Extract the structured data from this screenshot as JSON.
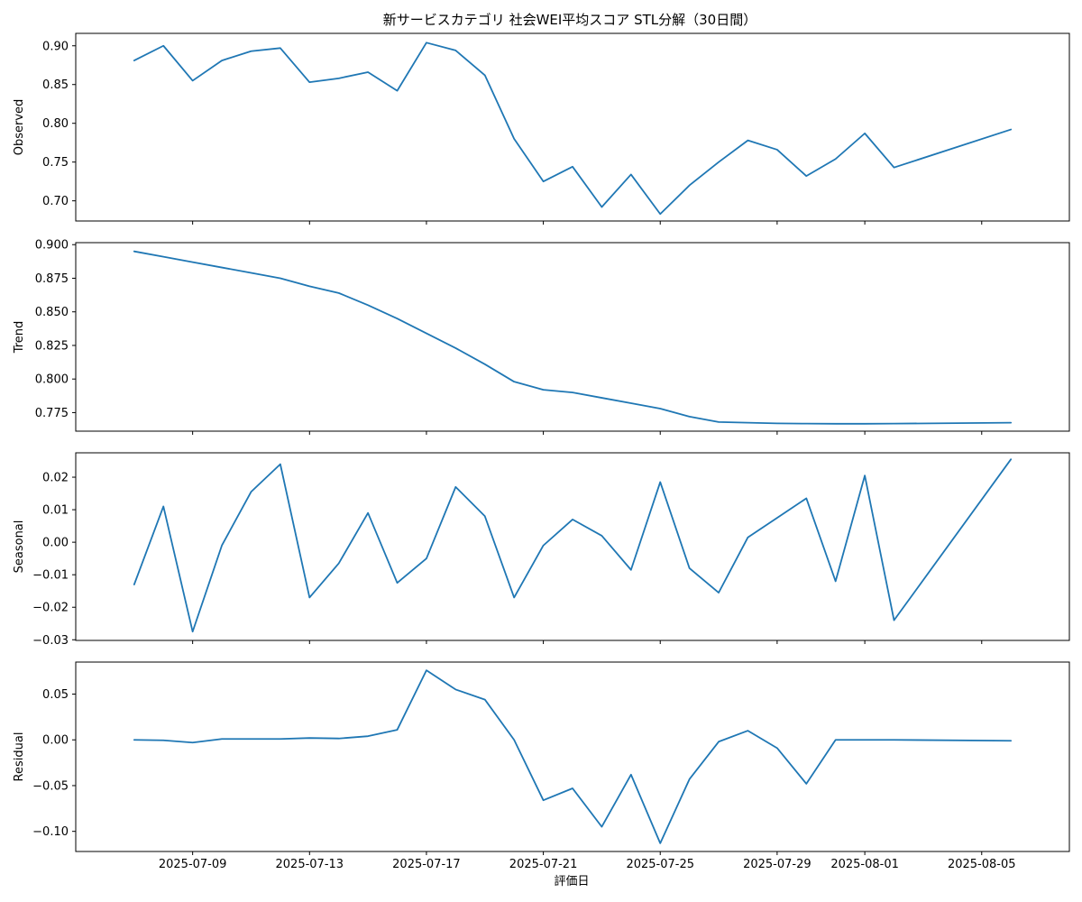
{
  "chart_data": {
    "type": "line",
    "title": "新サービスカテゴリ 社会WEI平均スコア STL分解（30日間）",
    "xlabel": "評価日",
    "dates": [
      "2025-07-07",
      "2025-07-08",
      "2025-07-09",
      "2025-07-10",
      "2025-07-11",
      "2025-07-12",
      "2025-07-13",
      "2025-07-14",
      "2025-07-15",
      "2025-07-16",
      "2025-07-17",
      "2025-07-18",
      "2025-07-19",
      "2025-07-20",
      "2025-07-21",
      "2025-07-22",
      "2025-07-23",
      "2025-07-24",
      "2025-07-25",
      "2025-07-26",
      "2025-07-27",
      "2025-07-28",
      "2025-07-29",
      "2025-07-30",
      "2025-07-31",
      "2025-08-01",
      "2025-08-02",
      "2025-08-06"
    ],
    "xlim": [
      "2025-07-05",
      "2025-08-08"
    ],
    "xticks": [
      "2025-07-09",
      "2025-07-13",
      "2025-07-17",
      "2025-07-21",
      "2025-07-25",
      "2025-07-29",
      "2025-08-01",
      "2025-08-05"
    ],
    "line_color": "#1f77b4",
    "panels": [
      {
        "ylabel": "Observed",
        "ylim": [
          0.674,
          0.916
        ],
        "yticks": [
          "0.70",
          "0.75",
          "0.80",
          "0.85",
          "0.90"
        ],
        "values": [
          0.881,
          0.9,
          0.855,
          0.881,
          0.893,
          0.897,
          0.853,
          0.858,
          0.866,
          0.842,
          0.904,
          0.894,
          0.862,
          0.78,
          0.725,
          0.744,
          0.692,
          0.734,
          0.683,
          0.72,
          0.75,
          0.778,
          0.766,
          0.732,
          0.754,
          0.787,
          0.743,
          0.792
        ]
      },
      {
        "ylabel": "Trend",
        "ylim": [
          0.7612,
          0.9015
        ],
        "yticks": [
          "0.775",
          "0.800",
          "0.825",
          "0.850",
          "0.875",
          "0.900"
        ],
        "values": [
          0.895,
          0.891,
          0.887,
          0.883,
          0.879,
          0.875,
          0.869,
          0.864,
          0.855,
          0.845,
          0.834,
          0.823,
          0.811,
          0.798,
          0.792,
          0.79,
          0.786,
          0.782,
          0.778,
          0.772,
          0.768,
          0.7675,
          0.767,
          0.7668,
          0.7667,
          0.7667,
          0.7668,
          0.7675
        ]
      },
      {
        "ylabel": "Seasonal",
        "ylim": [
          -0.0302,
          0.0275
        ],
        "yticks": [
          "−0.03",
          "−0.02",
          "−0.01",
          "0.00",
          "0.01",
          "0.02"
        ],
        "values": [
          -0.013,
          0.011,
          -0.0275,
          -0.001,
          0.0155,
          0.024,
          -0.017,
          -0.0065,
          0.009,
          -0.0125,
          -0.005,
          0.017,
          0.008,
          -0.017,
          -0.001,
          0.007,
          0.002,
          -0.0085,
          0.0185,
          -0.008,
          -0.0155,
          0.0015,
          0.0075,
          0.0135,
          -0.012,
          0.0205,
          -0.024,
          0.0255
        ]
      },
      {
        "ylabel": "Residual",
        "ylim": [
          -0.122,
          0.085
        ],
        "yticks": [
          "−0.10",
          "−0.05",
          "0.00",
          "0.05"
        ],
        "values": [
          0.0,
          -0.0005,
          -0.003,
          0.001,
          0.001,
          0.001,
          0.002,
          0.0015,
          0.004,
          0.011,
          0.076,
          0.055,
          0.044,
          0.0,
          -0.066,
          -0.053,
          -0.095,
          -0.038,
          -0.113,
          -0.043,
          -0.002,
          0.01,
          -0.009,
          -0.048,
          0.0,
          0.0,
          0.0,
          -0.001
        ]
      }
    ]
  }
}
